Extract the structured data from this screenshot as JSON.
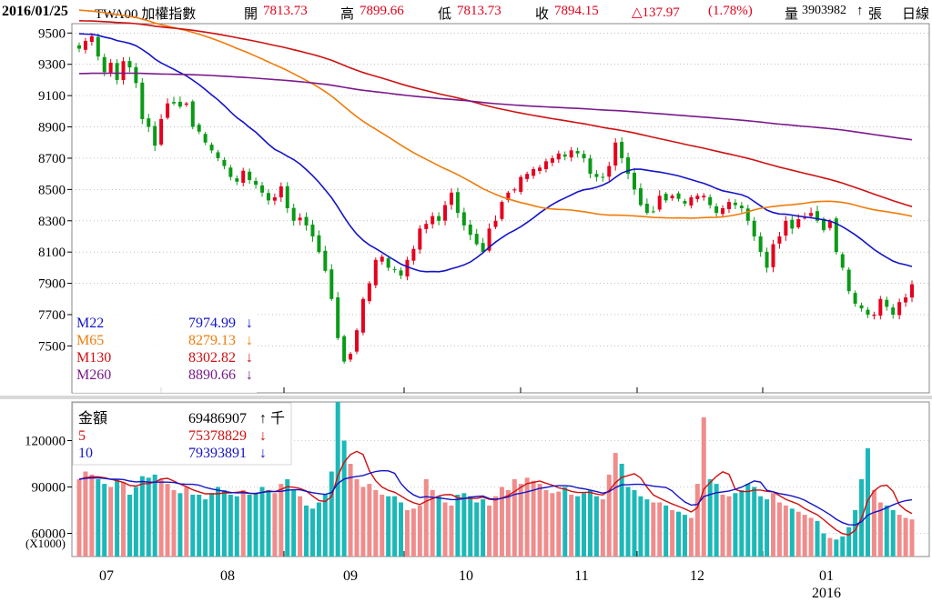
{
  "header": {
    "date": "2016/01/25",
    "symbol": "TWA00 加權指數",
    "open_label": "開",
    "open": "7813.73",
    "high_label": "高",
    "high": "7899.66",
    "low_label": "低",
    "low": "7813.73",
    "close_label": "收",
    "close": "7894.15",
    "change": "△137.97",
    "change_pct": "(1.78%)",
    "volume_label": "量",
    "volume": "3903982",
    "volume_arrow": "↑",
    "volume_unit": "張",
    "period": "日線"
  },
  "colors": {
    "up": "#e5001e",
    "down": "#0a9a16",
    "m22": "#1414c8",
    "m65": "#f07b0a",
    "m130": "#d01010",
    "m260": "#7a1a8a",
    "vol_up": "#f08c8c",
    "vol_down": "#1cb8b8",
    "grid": "#9a9a9a",
    "axis": "#000000"
  },
  "legend_price": [
    {
      "name": "M22",
      "value": "7974.99",
      "arrow": "↓",
      "color": "#1414c8"
    },
    {
      "name": "M65",
      "value": "8279.13",
      "arrow": "↓",
      "color": "#f07b0a"
    },
    {
      "name": "M130",
      "value": "8302.82",
      "arrow": "↓",
      "color": "#d01010"
    },
    {
      "name": "M260",
      "value": "8890.66",
      "arrow": "↓",
      "color": "#7a1a8a"
    }
  ],
  "legend_volume": [
    {
      "name": "金額",
      "value": "69486907",
      "arrow": "↑ 千",
      "color": "#000000"
    },
    {
      "name": "5",
      "value": "75378829",
      "arrow": "↓",
      "color": "#d01010"
    },
    {
      "name": "10",
      "value": "79393891",
      "arrow": "↓",
      "color": "#1414c8"
    }
  ],
  "chart_data": {
    "type": "candlestick",
    "y_ticks": [
      9500,
      9300,
      9100,
      8900,
      8700,
      8500,
      8300,
      8100,
      7900,
      7700,
      7500
    ],
    "ylim": [
      7200,
      9560
    ],
    "volume_ticks": [
      120000,
      90000,
      60000
    ],
    "volume_unit_label": "(X1000)",
    "volume_ylim": [
      45000,
      145000
    ],
    "months": [
      "07",
      "08",
      "09",
      "10",
      "11",
      "12",
      "01"
    ],
    "year_label": "2016",
    "closes": [
      9400,
      9450,
      9480,
      9350,
      9250,
      9310,
      9200,
      9320,
      9280,
      9180,
      8950,
      8900,
      8780,
      8950,
      9050,
      9050,
      9030,
      9050,
      8900,
      8870,
      8800,
      8750,
      8700,
      8650,
      8580,
      8550,
      8620,
      8560,
      8530,
      8480,
      8430,
      8450,
      8520,
      8380,
      8300,
      8320,
      8270,
      8200,
      8100,
      7980,
      7800,
      7550,
      7400,
      7450,
      7600,
      7800,
      7900,
      8050,
      8070,
      8000,
      7990,
      7950,
      8050,
      8120,
      8250,
      8280,
      8330,
      8300,
      8400,
      8480,
      8350,
      8270,
      8210,
      8150,
      8100,
      8250,
      8300,
      8420,
      8480,
      8500,
      8580,
      8600,
      8630,
      8640,
      8680,
      8700,
      8730,
      8710,
      8750,
      8730,
      8700,
      8600,
      8580,
      8580,
      8650,
      8800,
      8700,
      8600,
      8500,
      8400,
      8350,
      8360,
      8460,
      8430,
      8460,
      8440,
      8410,
      8450,
      8460,
      8460,
      8400,
      8350,
      8380,
      8420,
      8400,
      8380,
      8300,
      8200,
      8100,
      8000,
      8150,
      8200,
      8300,
      8250,
      8310,
      8320,
      8350,
      8300,
      8240,
      8300,
      8100,
      8000,
      7850,
      7770,
      7740,
      7700,
      7700,
      7800,
      7750,
      7700,
      7780,
      7810,
      7894
    ],
    "turnover": [
      95000,
      100000,
      98000,
      95000,
      92000,
      90000,
      95000,
      93000,
      85000,
      90000,
      97000,
      96000,
      98000,
      95000,
      92000,
      88000,
      86000,
      90000,
      85000,
      85000,
      82000,
      86000,
      90000,
      88000,
      85000,
      84000,
      88000,
      85000,
      86000,
      90000,
      88000,
      86000,
      92000,
      95000,
      88000,
      84000,
      78000,
      76000,
      80000,
      85000,
      100000,
      145000,
      120000,
      105000,
      95000,
      90000,
      92000,
      88000,
      85000,
      84000,
      84000,
      80000,
      75000,
      76000,
      78000,
      95000,
      88000,
      84000,
      80000,
      78000,
      85000,
      86000,
      84000,
      80000,
      82000,
      78000,
      84000,
      90000,
      88000,
      95000,
      92000,
      96000,
      94000,
      92000,
      88000,
      86000,
      87000,
      90000,
      85000,
      84000,
      86000,
      88000,
      84000,
      82000,
      98000,
      112000,
      105000,
      90000,
      88000,
      84000,
      82000,
      80000,
      80000,
      78000,
      75000,
      74000,
      72000,
      70000,
      92000,
      135000,
      95000,
      92000,
      85000,
      84000,
      86000,
      88000,
      92000,
      90000,
      84000,
      82000,
      86000,
      80000,
      78000,
      76000,
      74000,
      72000,
      70000,
      68000,
      60000,
      57000,
      56000,
      58000,
      64000,
      75000,
      95000,
      115000,
      88000,
      80000,
      78000,
      75000,
      72000,
      70000,
      69000
    ]
  }
}
